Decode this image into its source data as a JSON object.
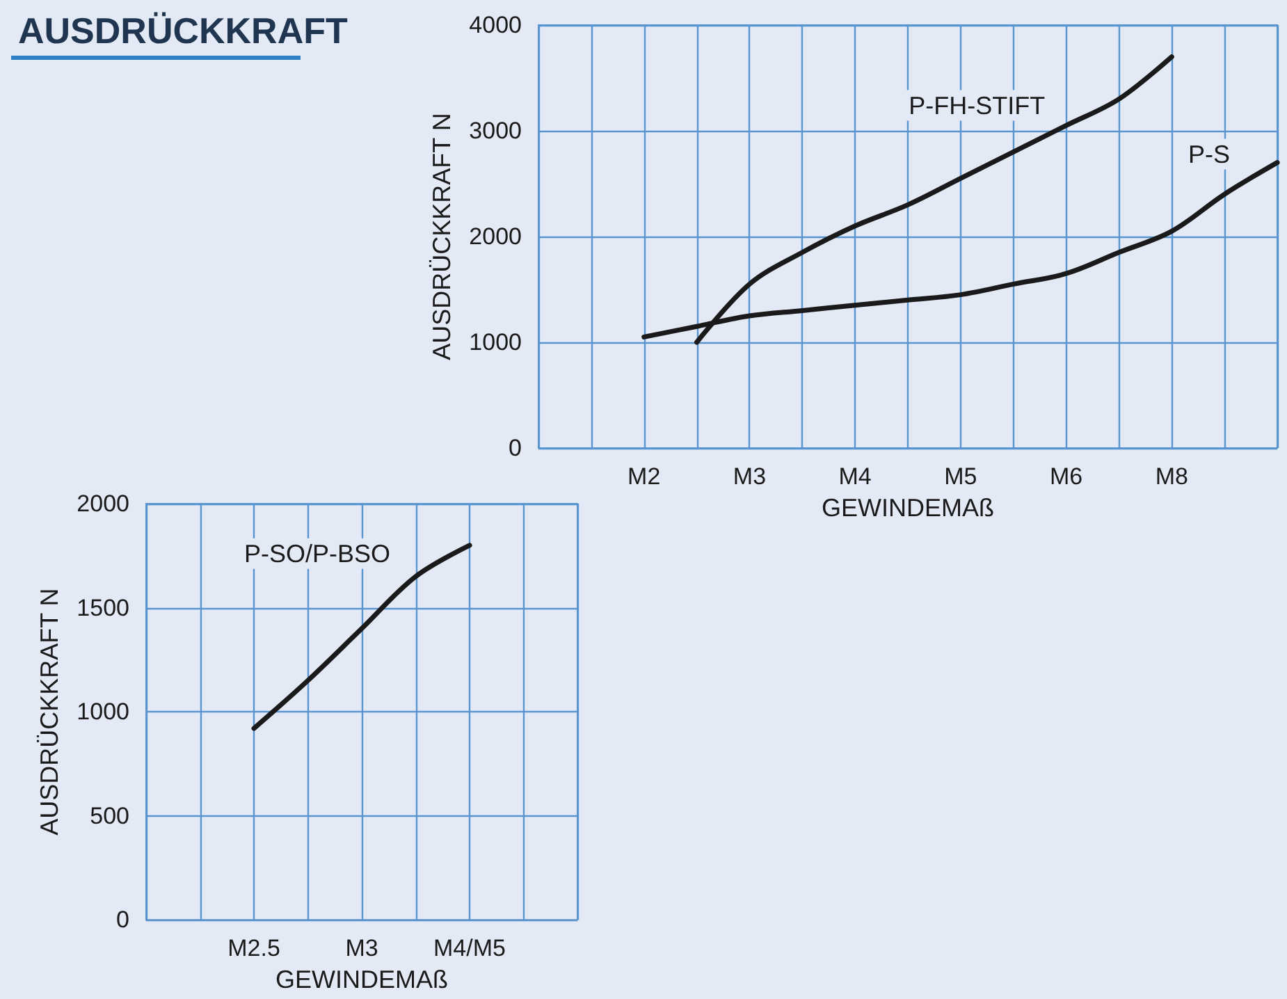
{
  "chart_data": [
    {
      "type": "line",
      "title": "AUSDRÜCKKRAFT",
      "xlabel": "GEWINDEMAß",
      "ylabel": "AUSDRÜCKKRAFT N",
      "categories": [
        null,
        null,
        "M2",
        null,
        "M3",
        null,
        "M4",
        null,
        "M5",
        null,
        "M6",
        null,
        "M8",
        null,
        null
      ],
      "ylim": [
        0,
        4000
      ],
      "yticks": [
        0,
        1000,
        2000,
        3000,
        4000
      ],
      "grid": true,
      "legend": false,
      "marker": "none",
      "line_style": "solid",
      "series": [
        {
          "name": "P-FH-STIFT",
          "color": "#1a1a1a",
          "values": [
            null,
            null,
            null,
            1000,
            1550,
            1850,
            2100,
            2300,
            2550,
            2800,
            3050,
            3300,
            3700,
            null,
            null
          ]
        },
        {
          "name": "P-S",
          "color": "#1a1a1a",
          "values": [
            null,
            null,
            1050,
            1150,
            1250,
            1300,
            1350,
            1400,
            1450,
            1550,
            1650,
            1850,
            2050,
            2400,
            2700
          ]
        }
      ]
    },
    {
      "type": "line",
      "xlabel": "GEWINDEMAß",
      "ylabel": "AUSDRÜCKKRAFT N",
      "categories": [
        null,
        null,
        "M2.5",
        null,
        "M3",
        null,
        "M4/M5",
        null,
        null
      ],
      "ylim": [
        0,
        2000
      ],
      "yticks": [
        0,
        500,
        1000,
        1500,
        2000
      ],
      "grid": true,
      "legend": false,
      "marker": "none",
      "line_style": "solid",
      "series": [
        {
          "name": "P-SO/P-BSO",
          "color": "#1a1a1a",
          "values": [
            null,
            null,
            920,
            1150,
            1400,
            1650,
            1800,
            null,
            null
          ]
        }
      ]
    }
  ]
}
